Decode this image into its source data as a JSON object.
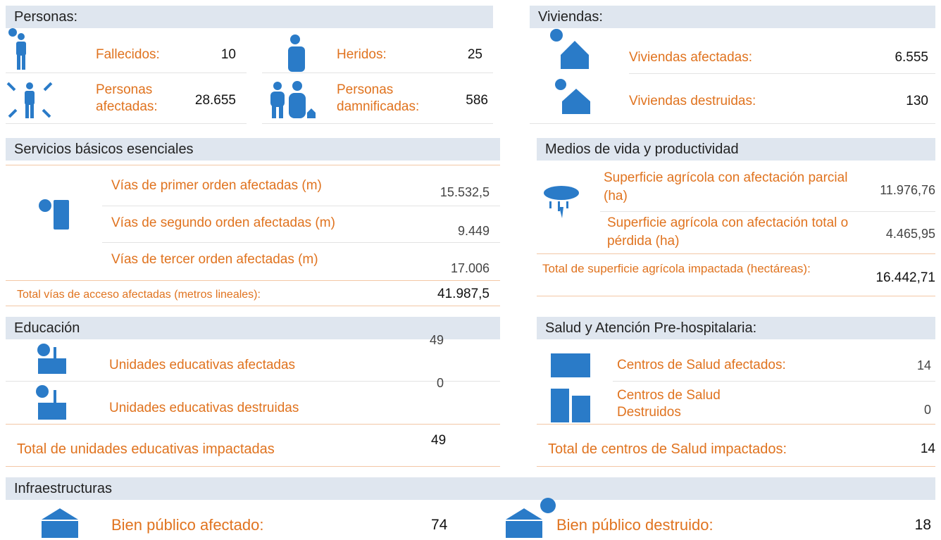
{
  "personas": {
    "title": "Personas:",
    "items": [
      {
        "label": "Fallecidos:",
        "value": "10"
      },
      {
        "label": "Heridos:",
        "value": "25"
      },
      {
        "label": "Personas afectadas:",
        "value": "28.655"
      },
      {
        "label": "Personas damnificadas:",
        "value": "586"
      }
    ]
  },
  "viviendas": {
    "title": "Viviendas:",
    "items": [
      {
        "label": "Viviendas afectadas:",
        "value": "6.555"
      },
      {
        "label": "Viviendas destruidas:",
        "value": "130"
      }
    ]
  },
  "servicios": {
    "title": "Servicios básicos esenciales",
    "items": [
      {
        "label": "Vías de primer orden afectadas (m)",
        "value": "15.532,5"
      },
      {
        "label": "Vías de segundo orden afectadas (m)",
        "value": "9.449"
      },
      {
        "label": "Vías de tercer orden afectadas (m)",
        "value": "17.006"
      }
    ],
    "total": {
      "label": "Total vías de acceso afectadas (metros lineales):",
      "value": "41.987,5"
    }
  },
  "medios": {
    "title": "Medios de vida y productividad",
    "items": [
      {
        "label": "Superficie agrícola con afectación parcial (ha)",
        "value": "11.976,76"
      },
      {
        "label": "Superficie agrícola con afectación total o pérdida (ha)",
        "value": "4.465,95"
      }
    ],
    "total": {
      "label": "Total de superficie agrícola impactada (hectáreas):",
      "value": "16.442,71"
    }
  },
  "educacion": {
    "title": "Educación",
    "items": [
      {
        "label": "Unidades educativas afectadas",
        "value": "49"
      },
      {
        "label": "Unidades educativas destruidas",
        "value": "0"
      }
    ],
    "total": {
      "label": "Total de unidades educativas impactadas",
      "value": "49"
    }
  },
  "salud": {
    "title": "Salud y Atención Pre-hospitalaria:",
    "items": [
      {
        "label": "Centros de Salud afectados:",
        "value": "14"
      },
      {
        "label": "Centros de Salud Destruidos",
        "value": "0"
      }
    ],
    "total": {
      "label": "Total de centros de Salud impactados:",
      "value": "14"
    }
  },
  "infraestructuras": {
    "title": "Infraestructuras",
    "items": [
      {
        "label": "Bien público afectado:",
        "value": "74"
      },
      {
        "label": "Bien público destruido:",
        "value": "18"
      }
    ]
  }
}
